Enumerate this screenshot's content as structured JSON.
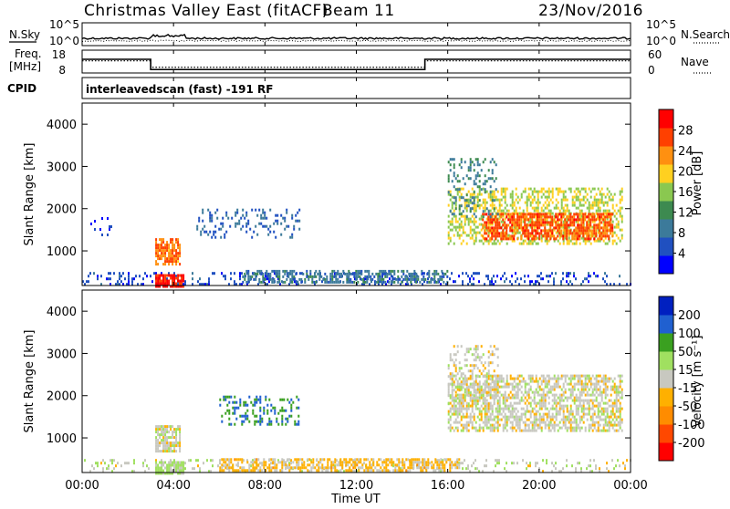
{
  "header": {
    "title": "Christmas Valley East (fitACF)",
    "beam": "Beam 11",
    "date": "23/Nov/2016",
    "program": "interleavedscan (fast) -191 RF"
  },
  "aux_panels": {
    "nsky": {
      "left_label": "N.Sky",
      "right_label": "N.Search",
      "left_ticks": [
        "10^5",
        "10^0"
      ],
      "right_ticks": [
        "10^5",
        "10^0"
      ]
    },
    "freq": {
      "left_label_1": "Freq.",
      "left_label_2": "[MHz]",
      "right_label": "Nave",
      "left_ticks": [
        "18",
        "8"
      ],
      "right_ticks": [
        "60",
        "0"
      ],
      "steps": [
        {
          "t0": 0,
          "t1": 3,
          "freq": 14,
          "nave": 32
        },
        {
          "t0": 3,
          "t1": 15,
          "freq": 9.5,
          "nave": 15
        },
        {
          "t0": 15,
          "t1": 24,
          "freq": 14,
          "nave": 32
        }
      ]
    },
    "cpid_label": "CPID"
  },
  "xaxis": {
    "label": "Time UT",
    "ticks": [
      "00:00",
      "04:00",
      "08:00",
      "12:00",
      "16:00",
      "20:00",
      "00:00"
    ],
    "range_hours": [
      0,
      24
    ]
  },
  "colors": {
    "power": [
      "#0000ff",
      "#2050c0",
      "#3c7a9a",
      "#3d8a50",
      "#8ac850",
      "#ffd020",
      "#ff9010",
      "#ff4000",
      "#ff0000"
    ],
    "velocity": [
      "#ff0000",
      "#ff4800",
      "#ff8c00",
      "#ffb000",
      "#c8c8c0",
      "#a0e060",
      "#3aa020",
      "#2060d0",
      "#0020c0"
    ]
  },
  "chart_data": [
    {
      "type": "heatmap",
      "name": "power",
      "ylabel": "Slant Range [km]",
      "ylim": [
        180,
        4500
      ],
      "yticks": [
        "1000",
        "2000",
        "3000",
        "4000"
      ],
      "colorbar_label": "Power [dB]",
      "colorbar_ticks": [
        "4",
        "8",
        "12",
        "16",
        "20",
        "24",
        "28"
      ],
      "clim": [
        0,
        32
      ],
      "echo_regions": [
        {
          "t0": 0.0,
          "t1": 24.0,
          "r0": 200,
          "r1": 500,
          "density": 0.22,
          "v": 5
        },
        {
          "t0": 7.0,
          "t1": 16.0,
          "r0": 250,
          "r1": 550,
          "density": 0.55,
          "v": 9
        },
        {
          "t0": 3.2,
          "t1": 4.3,
          "r0": 700,
          "r1": 1300,
          "density": 0.75,
          "v": 24
        },
        {
          "t0": 3.2,
          "t1": 4.4,
          "r0": 180,
          "r1": 450,
          "density": 0.85,
          "v": 29
        },
        {
          "t0": 5.0,
          "t1": 9.5,
          "r0": 1300,
          "r1": 2000,
          "density": 0.18,
          "v": 7
        },
        {
          "t0": 0.2,
          "t1": 1.4,
          "r0": 1400,
          "r1": 1800,
          "density": 0.12,
          "v": 4
        },
        {
          "t0": 16.0,
          "t1": 23.6,
          "r0": 1200,
          "r1": 2500,
          "density": 0.45,
          "v": 18
        },
        {
          "t0": 17.5,
          "t1": 23.2,
          "r0": 1300,
          "r1": 1900,
          "density": 0.7,
          "v": 26
        },
        {
          "t0": 16.0,
          "t1": 18.2,
          "r0": 1800,
          "r1": 3200,
          "density": 0.2,
          "v": 10
        }
      ]
    },
    {
      "type": "heatmap",
      "name": "velocity",
      "ylabel": "Slant Range [km]",
      "ylim": [
        180,
        4500
      ],
      "yticks": [
        "1000",
        "2000",
        "3000",
        "4000"
      ],
      "colorbar_label": "Velocity [m s⁻¹]",
      "colorbar_ticks": [
        "200",
        "100",
        "50",
        "15",
        "-15",
        "-50",
        "-100",
        "-200"
      ],
      "clim": [
        -250,
        250
      ],
      "echo_regions": [
        {
          "t0": 0.0,
          "t1": 24.0,
          "r0": 200,
          "r1": 500,
          "density": 0.18,
          "v": 10
        },
        {
          "t0": 6.0,
          "t1": 16.5,
          "r0": 220,
          "r1": 520,
          "density": 0.6,
          "v": -40
        },
        {
          "t0": 3.2,
          "t1": 4.3,
          "r0": 700,
          "r1": 1300,
          "density": 0.75,
          "v": 0
        },
        {
          "t0": 3.2,
          "t1": 4.4,
          "r0": 180,
          "r1": 450,
          "density": 0.85,
          "v": 40
        },
        {
          "t0": 6.0,
          "t1": 9.5,
          "r0": 1300,
          "r1": 2000,
          "density": 0.3,
          "v": 130
        },
        {
          "t0": 16.0,
          "t1": 23.6,
          "r0": 1200,
          "r1": 2500,
          "density": 0.6,
          "v": 0
        },
        {
          "t0": 16.0,
          "t1": 18.2,
          "r0": 1800,
          "r1": 3200,
          "density": 0.3,
          "v": 0
        }
      ]
    }
  ]
}
